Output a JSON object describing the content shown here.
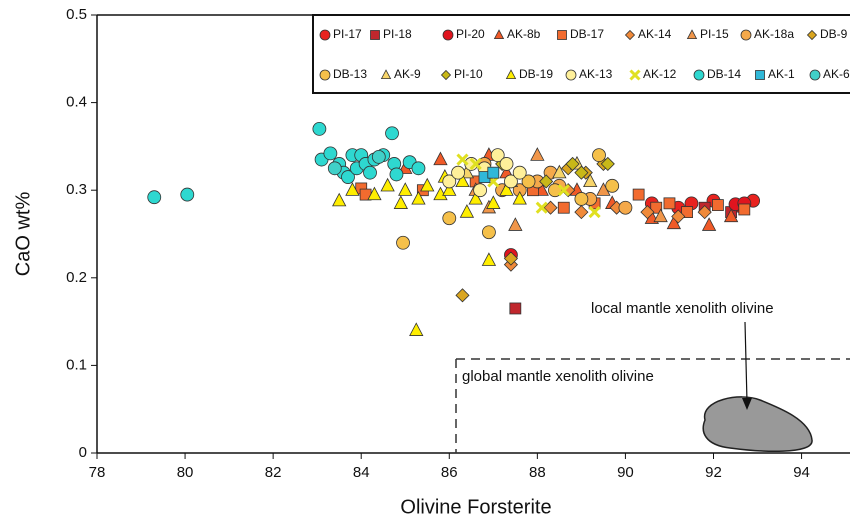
{
  "chart_data": {
    "type": "scatter",
    "x_label": "Olivine Forsterite",
    "y_label": "CaO wt%",
    "xlim": [
      78,
      95.1
    ],
    "ylim": [
      0,
      0.5
    ],
    "xticks": [
      78,
      80,
      82,
      84,
      86,
      88,
      90,
      92,
      94
    ],
    "yticks": [
      0,
      0.1,
      0.2,
      0.3,
      0.4,
      0.5
    ],
    "annotations": [
      "local mantle xenolith olivine",
      "global mantle xenolith olivine"
    ],
    "series": [
      {
        "name": "PI-17",
        "marker": "circle",
        "color": "#e8231f",
        "x": [
          90.6,
          91.2,
          91.5,
          92.0,
          92.6,
          92.9
        ],
        "values": [
          0.285,
          0.28,
          0.285,
          0.288,
          0.282,
          0.288
        ]
      },
      {
        "name": "PI-18",
        "marker": "square",
        "color": "#c0272d",
        "x": [
          87.5,
          91.8,
          92.4
        ],
        "values": [
          0.165,
          0.28,
          0.275
        ]
      },
      {
        "name": "PI-20",
        "marker": "circle",
        "color": "#e0141e",
        "x": [
          87.4,
          92.5,
          92.7
        ],
        "values": [
          0.226,
          0.284,
          0.285
        ]
      },
      {
        "name": "AK-8b",
        "marker": "triangle",
        "color": "#f05a28",
        "x": [
          85.0,
          85.8,
          86.9,
          87.3,
          88.1,
          88.9,
          89.7,
          90.6,
          91.1,
          91.9,
          92.4
        ],
        "values": [
          0.325,
          0.335,
          0.34,
          0.32,
          0.3,
          0.3,
          0.285,
          0.268,
          0.262,
          0.26,
          0.27
        ]
      },
      {
        "name": "DB-17",
        "marker": "square",
        "color": "#f26b2f",
        "x": [
          84.0,
          84.1,
          85.4,
          86.6,
          87.9,
          88.6,
          89.3,
          90.3,
          90.7,
          91.0,
          91.4,
          92.1,
          92.7
        ],
        "values": [
          0.302,
          0.295,
          0.3,
          0.31,
          0.3,
          0.28,
          0.285,
          0.295,
          0.28,
          0.285,
          0.275,
          0.283,
          0.278
        ]
      },
      {
        "name": "AK-14",
        "marker": "diamond",
        "color": "#f08a3a",
        "x": [
          86.9,
          87.4,
          88.3,
          88.7,
          89.0,
          89.8,
          90.5,
          91.2,
          91.8
        ],
        "values": [
          0.32,
          0.215,
          0.28,
          0.3,
          0.275,
          0.28,
          0.275,
          0.27,
          0.275
        ]
      },
      {
        "name": "PI-15",
        "marker": "triangle",
        "color": "#f0964a",
        "x": [
          86.6,
          86.9,
          87.5,
          88.0,
          89.5,
          90.8
        ],
        "values": [
          0.3,
          0.28,
          0.26,
          0.34,
          0.3,
          0.27
        ]
      },
      {
        "name": "AK-18a",
        "marker": "circle",
        "color": "#f5a94a",
        "x": [
          86.8,
          87.2,
          87.6,
          88.0,
          88.3,
          88.5,
          89.2,
          90.0
        ],
        "values": [
          0.33,
          0.3,
          0.3,
          0.31,
          0.32,
          0.305,
          0.29,
          0.28
        ]
      },
      {
        "name": "DB-9",
        "marker": "diamond",
        "color": "#d9a520",
        "x": [
          86.3,
          87.4,
          88.7,
          89.1,
          89.5
        ],
        "values": [
          0.18,
          0.222,
          0.325,
          0.32,
          0.33
        ]
      },
      {
        "name": "DB-13",
        "marker": "circle",
        "color": "#f5c04a",
        "x": [
          84.95,
          86.0,
          86.9,
          87.8,
          88.4,
          89.0,
          89.4,
          89.7
        ],
        "values": [
          0.24,
          0.268,
          0.252,
          0.31,
          0.3,
          0.29,
          0.34,
          0.305
        ]
      },
      {
        "name": "AK-9",
        "marker": "triangle",
        "color": "#f7d56a",
        "x": [
          86.4,
          87.4,
          88.5,
          88.9,
          89.2
        ],
        "values": [
          0.32,
          0.31,
          0.32,
          0.33,
          0.31
        ]
      },
      {
        "name": "PI-10",
        "marker": "diamond",
        "color": "#c8b818",
        "x": [
          87.2,
          88.2,
          88.8,
          89.0,
          89.6
        ],
        "values": [
          0.33,
          0.31,
          0.33,
          0.32,
          0.33
        ]
      },
      {
        "name": "DB-19",
        "marker": "triangle",
        "color": "#ffee00",
        "x": [
          83.5,
          83.8,
          84.3,
          84.6,
          84.9,
          85.0,
          85.25,
          85.3,
          85.5,
          85.8,
          85.9,
          86.0,
          86.3,
          86.4,
          86.6,
          86.9,
          87.0,
          87.3,
          87.6
        ],
        "values": [
          0.288,
          0.3,
          0.295,
          0.305,
          0.285,
          0.3,
          0.14,
          0.29,
          0.305,
          0.295,
          0.315,
          0.3,
          0.31,
          0.275,
          0.29,
          0.22,
          0.285,
          0.3,
          0.29
        ]
      },
      {
        "name": "AK-13",
        "marker": "circle",
        "color": "#fff09a",
        "x": [
          86.0,
          86.2,
          86.5,
          86.7,
          86.8,
          87.1,
          87.3,
          87.4,
          87.6
        ],
        "values": [
          0.31,
          0.32,
          0.33,
          0.3,
          0.325,
          0.34,
          0.33,
          0.31,
          0.32
        ]
      },
      {
        "name": "AK-12",
        "marker": "x",
        "color": "#e0e020",
        "x": [
          86.3,
          86.6,
          87.0,
          88.1,
          88.6,
          89.3
        ],
        "values": [
          0.335,
          0.33,
          0.31,
          0.28,
          0.3,
          0.275
        ]
      },
      {
        "name": "DB-14",
        "marker": "circle",
        "color": "#2ed8d0",
        "x": [
          79.3,
          80.05,
          83.05,
          83.1,
          83.3,
          83.5,
          83.6,
          83.7,
          83.8,
          83.9,
          84.0,
          84.1,
          84.2,
          84.3,
          84.5,
          84.7,
          84.75,
          84.8,
          85.1,
          85.3
        ],
        "values": [
          0.292,
          0.295,
          0.37,
          0.335,
          0.342,
          0.33,
          0.32,
          0.315,
          0.34,
          0.325,
          0.34,
          0.33,
          0.32,
          0.335,
          0.34,
          0.365,
          0.33,
          0.318,
          0.332,
          0.325
        ]
      },
      {
        "name": "AK-1",
        "marker": "square",
        "color": "#30b8d8",
        "x": [
          86.8,
          87.0
        ],
        "values": [
          0.315,
          0.32
        ]
      },
      {
        "name": "AK-6",
        "marker": "circle",
        "color": "#40d0c8",
        "x": [
          83.4,
          84.4
        ],
        "values": [
          0.325,
          0.338
        ]
      }
    ]
  }
}
